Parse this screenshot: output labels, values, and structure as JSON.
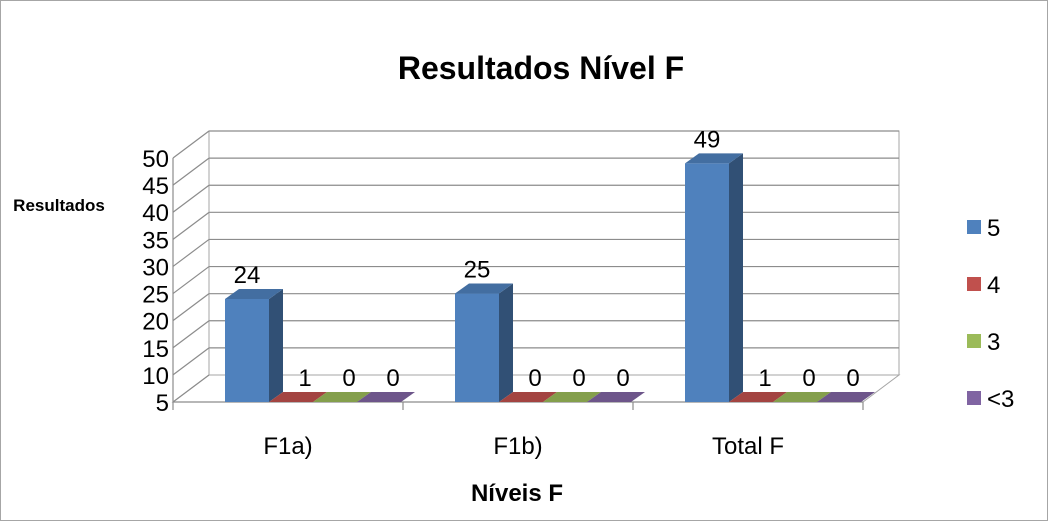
{
  "chart_data": {
    "type": "bar",
    "title": "Resultados Nível F",
    "xlabel": "Níveis F",
    "ylabel": "Resultados",
    "categories": [
      "F1a)",
      "F1b)",
      "Total F"
    ],
    "series": [
      {
        "name": "5",
        "color": "#4f81bd",
        "values": [
          24,
          25,
          49
        ]
      },
      {
        "name": "4",
        "color": "#c0504d",
        "values": [
          1,
          0,
          1
        ]
      },
      {
        "name": "3",
        "color": "#9bbb59",
        "values": [
          0,
          0,
          0
        ]
      },
      {
        "name": "<3",
        "color": "#8064a2",
        "values": [
          0,
          0,
          0
        ]
      }
    ],
    "yticks": [
      5,
      10,
      15,
      20,
      25,
      30,
      35,
      40,
      45,
      50
    ],
    "data_labels": [
      [
        "24",
        "25",
        "49"
      ],
      [
        "1",
        "0",
        "1"
      ],
      [
        "0",
        "0",
        "0"
      ],
      [
        "0",
        "0",
        "0"
      ]
    ],
    "ylim": [
      5,
      50
    ],
    "grid": true,
    "legend_position": "right",
    "style": "3d-column"
  }
}
